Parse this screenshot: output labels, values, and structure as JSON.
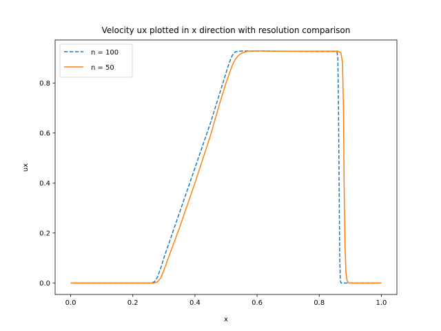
{
  "chart_data": {
    "type": "line",
    "title": "Velocity ux plotted in x direction with resolution comparison",
    "xlabel": "x",
    "ylabel": "ux",
    "xlim": [
      -0.05,
      1.05
    ],
    "ylim": [
      -0.046,
      0.972
    ],
    "xticks": [
      0.0,
      0.2,
      0.4,
      0.6,
      0.8,
      1.0
    ],
    "xtick_labels": [
      "0.0",
      "0.2",
      "0.4",
      "0.6",
      "0.8",
      "1.0"
    ],
    "yticks": [
      0.0,
      0.2,
      0.4,
      0.6,
      0.8
    ],
    "ytick_labels": [
      "0.0",
      "0.2",
      "0.4",
      "0.6",
      "0.8"
    ],
    "grid": false,
    "legend_position": "upper-left",
    "series": [
      {
        "name": "n = 100",
        "color": "#1f77b4",
        "dash": "dashed",
        "points": [
          [
            0.0,
            0.0
          ],
          [
            0.26,
            0.0
          ],
          [
            0.27,
            0.005
          ],
          [
            0.28,
            0.025
          ],
          [
            0.29,
            0.06
          ],
          [
            0.3,
            0.1
          ],
          [
            0.35,
            0.28
          ],
          [
            0.4,
            0.46
          ],
          [
            0.45,
            0.64
          ],
          [
            0.48,
            0.76
          ],
          [
            0.5,
            0.84
          ],
          [
            0.51,
            0.88
          ],
          [
            0.52,
            0.91
          ],
          [
            0.53,
            0.925
          ],
          [
            0.55,
            0.928
          ],
          [
            0.6,
            0.928
          ],
          [
            0.7,
            0.927
          ],
          [
            0.8,
            0.926
          ],
          [
            0.857,
            0.926
          ],
          [
            0.86,
            0.9
          ],
          [
            0.862,
            0.7
          ],
          [
            0.864,
            0.4
          ],
          [
            0.866,
            0.1
          ],
          [
            0.868,
            0.01
          ],
          [
            0.87,
            0.0
          ],
          [
            1.0,
            0.0
          ]
        ]
      },
      {
        "name": "n = 50",
        "color": "#ff7f0e",
        "dash": "solid",
        "points": [
          [
            0.0,
            0.0
          ],
          [
            0.27,
            0.0
          ],
          [
            0.28,
            0.005
          ],
          [
            0.29,
            0.02
          ],
          [
            0.3,
            0.05
          ],
          [
            0.31,
            0.085
          ],
          [
            0.35,
            0.22
          ],
          [
            0.4,
            0.4
          ],
          [
            0.45,
            0.59
          ],
          [
            0.48,
            0.72
          ],
          [
            0.5,
            0.8
          ],
          [
            0.52,
            0.87
          ],
          [
            0.53,
            0.895
          ],
          [
            0.54,
            0.91
          ],
          [
            0.55,
            0.92
          ],
          [
            0.57,
            0.927
          ],
          [
            0.6,
            0.928
          ],
          [
            0.7,
            0.927
          ],
          [
            0.8,
            0.927
          ],
          [
            0.86,
            0.927
          ],
          [
            0.87,
            0.92
          ],
          [
            0.875,
            0.88
          ],
          [
            0.878,
            0.7
          ],
          [
            0.88,
            0.4
          ],
          [
            0.883,
            0.15
          ],
          [
            0.886,
            0.04
          ],
          [
            0.89,
            0.008
          ],
          [
            0.895,
            0.0
          ],
          [
            1.0,
            0.0
          ]
        ]
      }
    ]
  }
}
